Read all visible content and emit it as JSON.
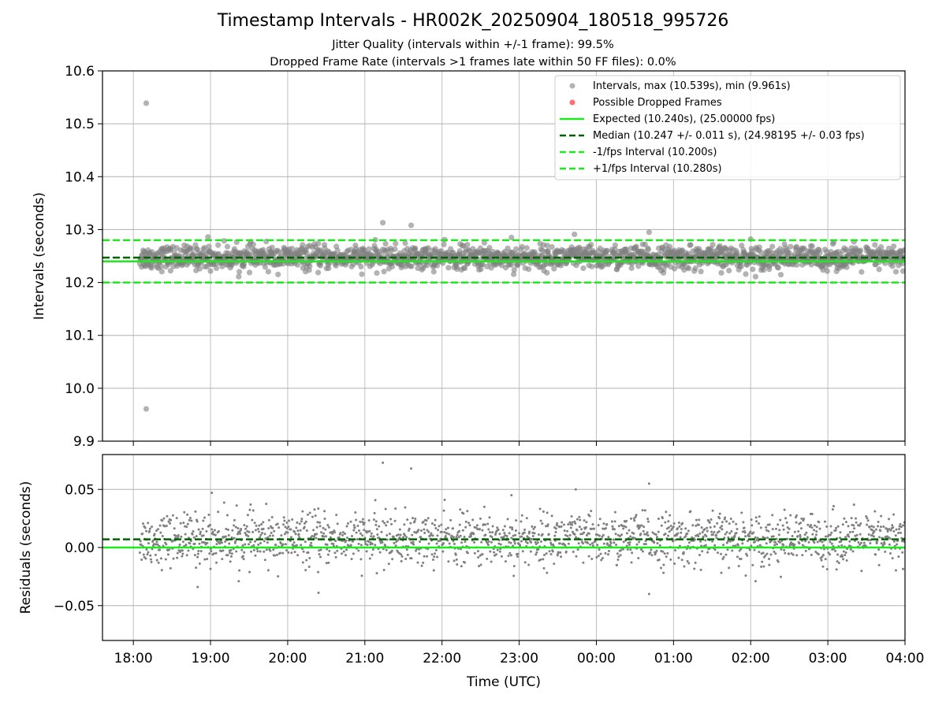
{
  "figure": {
    "title": "Timestamp Intervals - HR002K_20250904_180518_995726",
    "subtitle_1": "Jitter Quality (intervals within +/-1 frame): 99.5%",
    "subtitle_2": "Dropped Frame Rate (intervals >1 frames late within 50 FF files): 0.0%"
  },
  "colors": {
    "points": "#808080",
    "dropped": "#ff4040",
    "expected": "#1ee81e",
    "median": "#006400",
    "fps_interval": "#1ee81e",
    "grid": "#b0b0b0"
  },
  "chart_data": [
    {
      "type": "scatter",
      "ylabel": "Intervals (seconds)",
      "ylim": [
        9.9,
        10.6
      ],
      "yticks": [
        "9.9",
        "10.0",
        "10.1",
        "10.2",
        "10.3",
        "10.4",
        "10.5",
        "10.6"
      ],
      "xlim": [
        "17:36",
        "04:00"
      ],
      "grid": true,
      "legend_placement": "top-right",
      "legend": [
        "Intervals, max (10.539s), min (9.961s)",
        "Possible Dropped Frames",
        "Expected (10.240s), (25.00000 fps)",
        "Median (10.247 +/- 0.011 s), (24.98195 +/- 0.03 fps)",
        "-1/fps Interval (10.200s)",
        "+1/fps Interval (10.280s)"
      ],
      "lines": {
        "expected": 10.24,
        "median": 10.247,
        "minus_fps": 10.2,
        "plus_fps": 10.28
      },
      "series": [
        {
          "name": "Intervals, max (10.539s), min (9.961s)",
          "band_center": 10.247,
          "band_std": 0.011,
          "outliers": [
            {
              "x": "18:10",
              "y": 10.539
            },
            {
              "x": "18:10",
              "y": 9.961
            },
            {
              "x": "21:14",
              "y": 10.313
            },
            {
              "x": "21:36",
              "y": 10.308
            },
            {
              "x": "23:43",
              "y": 10.291
            },
            {
              "x": "00:41",
              "y": 10.295
            },
            {
              "x": "18:58",
              "y": 10.286
            },
            {
              "x": "22:54",
              "y": 10.285
            },
            {
              "x": "02:00",
              "y": 10.282
            }
          ]
        }
      ]
    },
    {
      "type": "scatter",
      "ylabel": "Residuals (seconds)",
      "xlabel": "Time (UTC)",
      "ylim": [
        -0.08,
        0.08
      ],
      "yticks": [
        "−0.05",
        "0.00",
        "0.05"
      ],
      "xticks": [
        "18:00",
        "19:00",
        "20:00",
        "21:00",
        "22:00",
        "23:00",
        "00:00",
        "01:00",
        "02:00",
        "03:00",
        "04:00"
      ],
      "grid": true,
      "lines": {
        "zero": 0.0,
        "median_residual": 0.007
      },
      "series": [
        {
          "band_center": 0.007,
          "band_std": 0.011,
          "outliers": [
            {
              "x": "21:14",
              "y": 0.073
            },
            {
              "x": "21:36",
              "y": 0.068
            },
            {
              "x": "00:41",
              "y": 0.055
            },
            {
              "x": "23:44",
              "y": 0.05
            },
            {
              "x": "22:54",
              "y": 0.045
            },
            {
              "x": "19:01",
              "y": 0.047
            },
            {
              "x": "20:24",
              "y": -0.039
            },
            {
              "x": "00:41",
              "y": -0.04
            },
            {
              "x": "18:50",
              "y": -0.034
            }
          ]
        }
      ]
    }
  ]
}
